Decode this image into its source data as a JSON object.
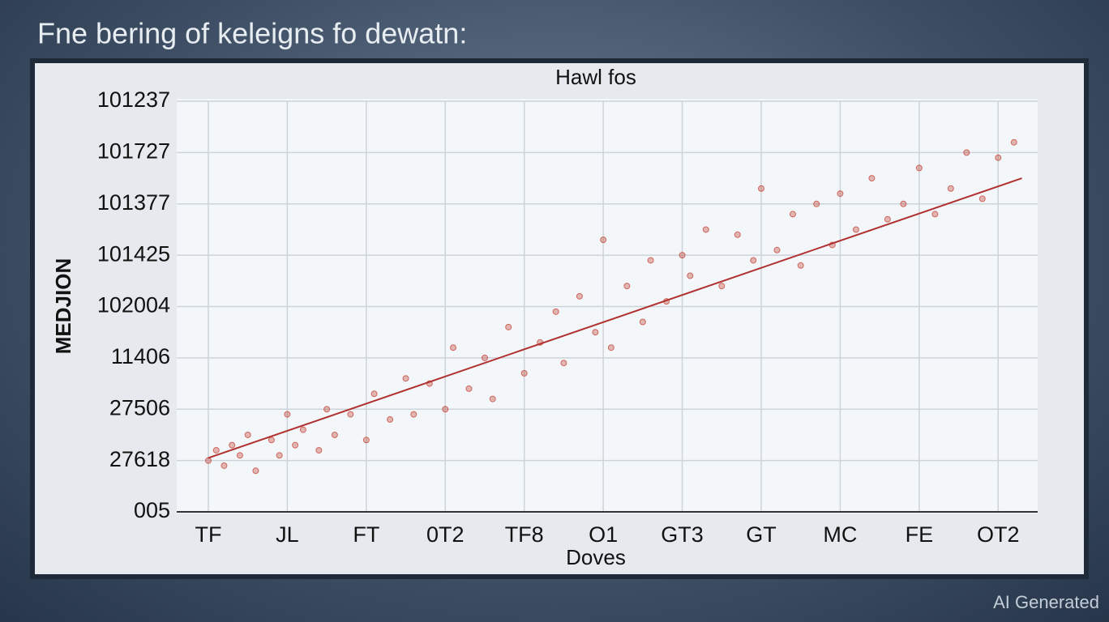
{
  "page_title": "Fne bering of keleigns fo dewatn:",
  "watermark": "AI Generated",
  "chart_data": {
    "type": "scatter",
    "title": "Hawl fos",
    "xlabel": "Doves",
    "ylabel": "MEDJION",
    "color": "#c0392b",
    "grid": true,
    "xlim": [
      -0.4,
      10.5
    ],
    "ylim": [
      0,
      8
    ],
    "xticks": [
      {
        "value": 0,
        "label": "TF"
      },
      {
        "value": 1,
        "label": "JL"
      },
      {
        "value": 2,
        "label": "FT"
      },
      {
        "value": 3,
        "label": "0T2"
      },
      {
        "value": 4,
        "label": "TF8"
      },
      {
        "value": 5,
        "label": "O1"
      },
      {
        "value": 6,
        "label": "GT3"
      },
      {
        "value": 7,
        "label": "GT"
      },
      {
        "value": 8,
        "label": "MC"
      },
      {
        "value": 9,
        "label": "FE"
      },
      {
        "value": 10,
        "label": "OT2"
      }
    ],
    "yticks": [
      {
        "value": 0,
        "label": "005"
      },
      {
        "value": 1,
        "label": "27618"
      },
      {
        "value": 2,
        "label": "27506"
      },
      {
        "value": 3,
        "label": "11406"
      },
      {
        "value": 4,
        "label": "102004"
      },
      {
        "value": 5,
        "label": "101425"
      },
      {
        "value": 6,
        "label": "101377"
      },
      {
        "value": 7,
        "label": "101727"
      },
      {
        "value": 8,
        "label": "101237"
      }
    ],
    "x": [
      0,
      0.1,
      0.2,
      0.3,
      0.4,
      0.5,
      0.6,
      0.8,
      0.9,
      1.0,
      1.1,
      1.2,
      1.4,
      1.5,
      1.6,
      1.8,
      2.0,
      2.1,
      2.3,
      2.5,
      2.6,
      2.8,
      3.0,
      3.1,
      3.3,
      3.5,
      3.6,
      3.8,
      4.0,
      4.2,
      4.4,
      4.5,
      4.7,
      4.9,
      5.0,
      5.1,
      5.3,
      5.5,
      5.6,
      5.8,
      6.0,
      6.1,
      6.3,
      6.5,
      6.7,
      6.9,
      7.0,
      7.2,
      7.4,
      7.5,
      7.7,
      7.9,
      8.0,
      8.2,
      8.4,
      8.6,
      8.8,
      9.0,
      9.2,
      9.4,
      9.6,
      9.8,
      10.0,
      10.2
    ],
    "values": [
      1.0,
      1.2,
      0.9,
      1.3,
      1.1,
      1.5,
      0.8,
      1.4,
      1.1,
      1.9,
      1.3,
      1.6,
      1.2,
      2.0,
      1.5,
      1.9,
      1.4,
      2.3,
      1.8,
      2.6,
      1.9,
      2.5,
      2.0,
      3.2,
      2.4,
      3.0,
      2.2,
      3.6,
      2.7,
      3.3,
      3.9,
      2.9,
      4.2,
      3.5,
      5.3,
      3.2,
      4.4,
      3.7,
      4.9,
      4.1,
      5.0,
      4.6,
      5.5,
      4.4,
      5.4,
      4.9,
      6.3,
      5.1,
      5.8,
      4.8,
      6.0,
      5.2,
      6.2,
      5.5,
      6.5,
      5.7,
      6.0,
      6.7,
      5.8,
      6.3,
      7.0,
      6.1,
      6.9,
      7.2
    ],
    "trend": {
      "x": [
        0,
        10.3
      ],
      "y": [
        1.05,
        6.5
      ],
      "color": "#b03030"
    }
  }
}
